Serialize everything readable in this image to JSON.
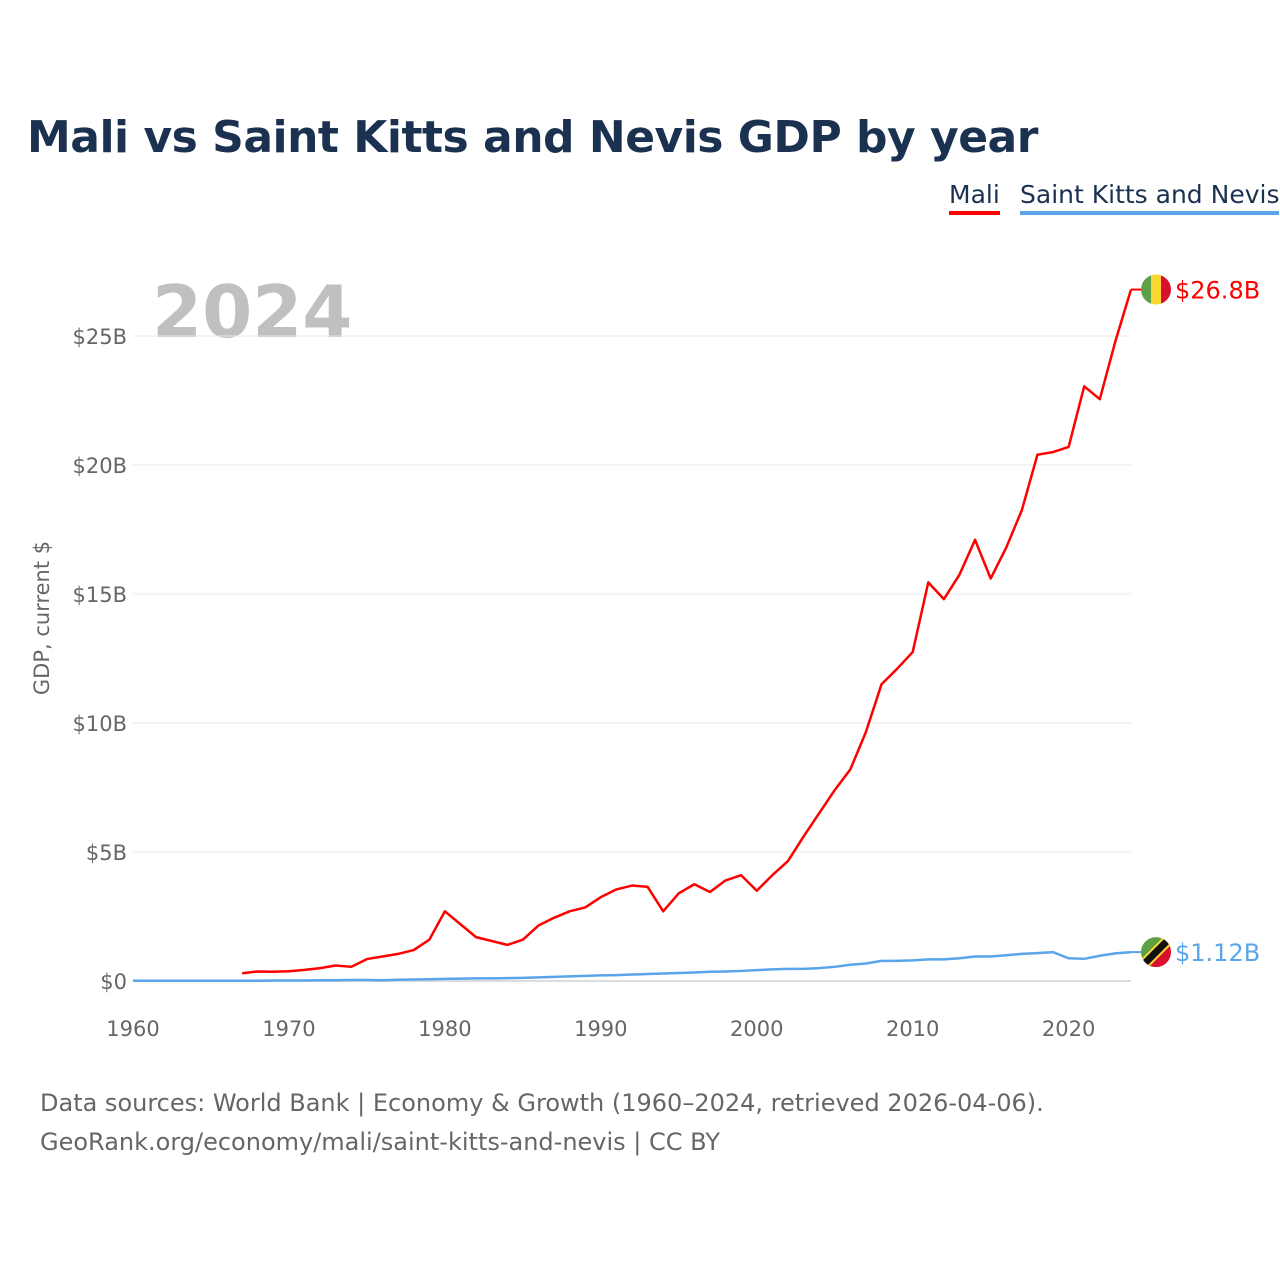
{
  "chart_data": {
    "type": "line",
    "title": "Mali vs Saint Kitts and Nevis GDP by year",
    "ylabel": "GDP, current $",
    "xlabel": "",
    "year_label": "2024",
    "ylim": [
      0,
      25
    ],
    "xlim": [
      1960,
      2024
    ],
    "yticks": [
      0,
      5,
      10,
      15,
      20,
      25
    ],
    "ytick_labels": [
      "$0",
      "$5B",
      "$10B",
      "$15B",
      "$20B",
      "$25B"
    ],
    "xticks": [
      1960,
      1970,
      1980,
      1990,
      2000,
      2010,
      2020
    ],
    "xtick_labels": [
      "1960",
      "1970",
      "1980",
      "1990",
      "2000",
      "2010",
      "2020"
    ],
    "grid": true,
    "legend_placement": "top-right",
    "series": [
      {
        "name": "Mali",
        "color": "#ff0000",
        "end_label": "$26.8B",
        "start_year": 1967,
        "values": [
          0.3,
          0.37,
          0.36,
          0.38,
          0.43,
          0.5,
          0.6,
          0.55,
          0.85,
          0.95,
          1.05,
          1.2,
          1.6,
          2.7,
          2.2,
          1.7,
          1.55,
          1.4,
          1.6,
          2.15,
          2.45,
          2.7,
          2.85,
          3.25,
          3.55,
          3.7,
          3.65,
          2.7,
          3.4,
          3.75,
          3.45,
          3.9,
          4.1,
          3.5,
          4.1,
          4.65,
          5.6,
          6.5,
          7.4,
          8.2,
          9.65,
          11.5,
          12.1,
          12.75,
          15.45,
          14.8,
          15.75,
          17.1,
          15.6,
          16.8,
          18.25,
          20.4,
          20.5,
          20.7,
          23.05,
          22.55,
          24.8,
          26.8
        ]
      },
      {
        "name": "Saint Kitts and Nevis",
        "color": "#5aa5ea",
        "end_label": "$1.12B",
        "start_year": 1960,
        "values": [
          0.01,
          0.01,
          0.01,
          0.01,
          0.01,
          0.01,
          0.01,
          0.01,
          0.01,
          0.02,
          0.02,
          0.02,
          0.03,
          0.03,
          0.04,
          0.04,
          0.03,
          0.05,
          0.06,
          0.07,
          0.08,
          0.09,
          0.1,
          0.1,
          0.11,
          0.12,
          0.14,
          0.16,
          0.18,
          0.2,
          0.22,
          0.23,
          0.25,
          0.27,
          0.29,
          0.31,
          0.33,
          0.36,
          0.37,
          0.39,
          0.42,
          0.45,
          0.47,
          0.47,
          0.5,
          0.55,
          0.63,
          0.68,
          0.78,
          0.78,
          0.8,
          0.84,
          0.84,
          0.88,
          0.95,
          0.95,
          1.0,
          1.05,
          1.08,
          1.12,
          0.88,
          0.86,
          0.98,
          1.07,
          1.12
        ]
      }
    ]
  },
  "source": {
    "line1": "Data sources: World Bank | Economy & Growth (1960–2024, retrieved 2026-04-06).",
    "line2": "GeoRank.org/economy/mali/saint-kitts-and-nevis | CC BY"
  }
}
